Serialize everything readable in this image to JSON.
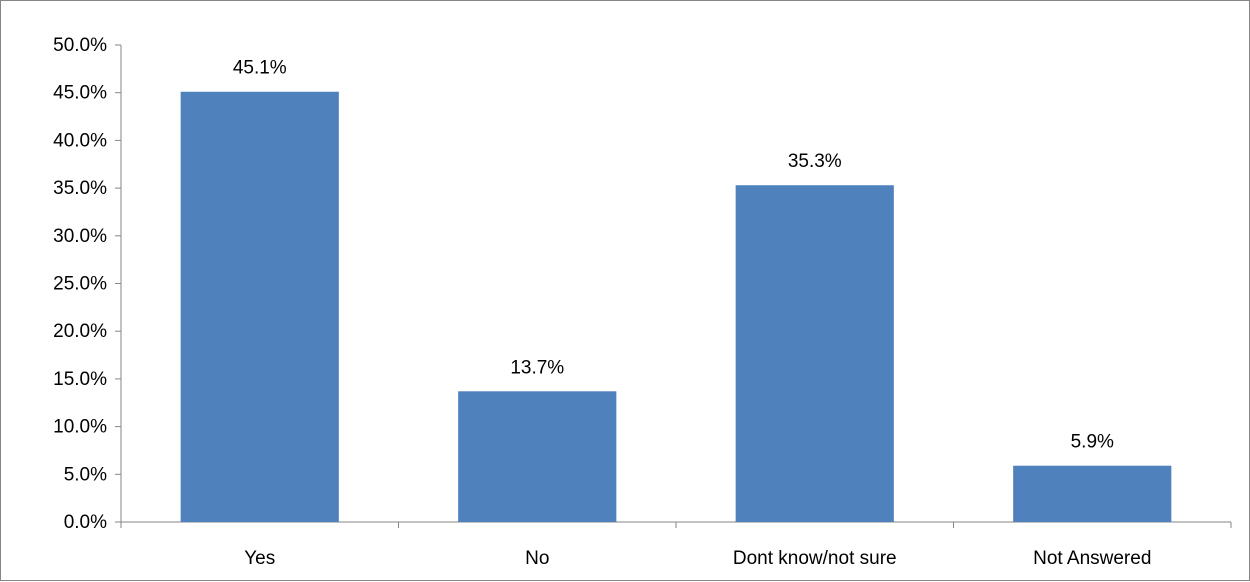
{
  "chart_data": {
    "type": "bar",
    "title": "",
    "xlabel": "",
    "ylabel": "",
    "categories": [
      "Yes",
      "No",
      "Dont know/not sure",
      "Not Answered"
    ],
    "values": [
      45.1,
      13.7,
      35.3,
      5.9
    ],
    "data_labels": [
      "45.1%",
      "13.7%",
      "35.3%",
      "5.9%"
    ],
    "ylim": [
      0,
      50
    ],
    "yticks": [
      0,
      5,
      10,
      15,
      20,
      25,
      30,
      35,
      40,
      45,
      50
    ],
    "ytick_labels": [
      "0.0%",
      "5.0%",
      "10.0%",
      "15.0%",
      "20.0%",
      "25.0%",
      "30.0%",
      "35.0%",
      "40.0%",
      "45.0%",
      "50.0%"
    ],
    "grid": false,
    "legend": "none",
    "bar_color": "#4f81bd",
    "axis_color": "#868686"
  }
}
